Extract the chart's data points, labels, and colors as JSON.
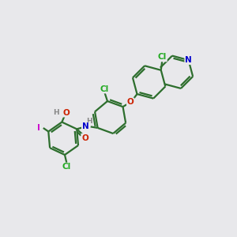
{
  "bg_color": "#e8e8eb",
  "bond_color": "#2d6e2d",
  "bond_width": 1.6,
  "atom_colors": {
    "N": "#0000cc",
    "O": "#cc2200",
    "Cl": "#22aa22",
    "I": "#cc00cc",
    "H": "#888888"
  },
  "figsize": [
    3.0,
    3.0
  ],
  "dpi": 100
}
